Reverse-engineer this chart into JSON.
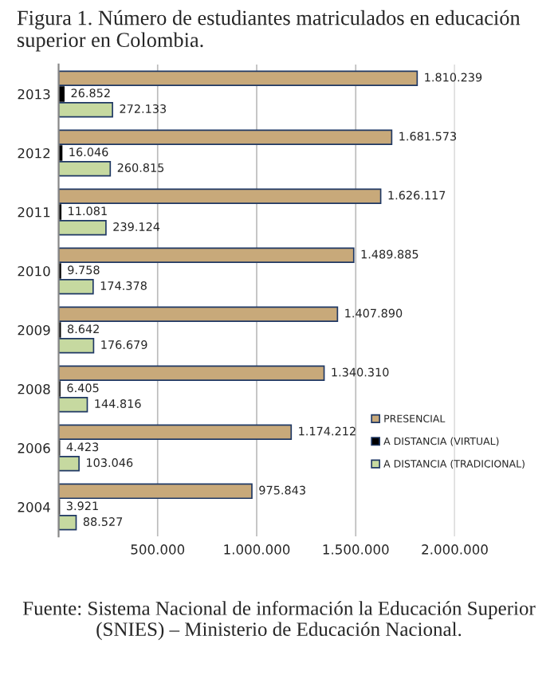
{
  "chart_data": {
    "type": "bar",
    "orientation": "horizontal",
    "title": "Figura 1. Número de estudiantes matriculados en educación superior en Colombia.",
    "categories": [
      "2013",
      "2012",
      "2011",
      "2010",
      "2009",
      "2008",
      "2006",
      "2004"
    ],
    "series": [
      {
        "name": "PRESENCIAL",
        "color": "#c8a97a",
        "values": [
          1810239,
          1681573,
          1626117,
          1489885,
          1407890,
          1340310,
          1174212,
          975843
        ],
        "value_labels": [
          "1.810.239",
          "1.681.573",
          "1.626.117",
          "1.489.885",
          "1.407.890",
          "1.340.310",
          "1.174.212",
          "975.843"
        ]
      },
      {
        "name": "A DISTANCIA (VIRTUAL)",
        "color": "#000000",
        "values": [
          26852,
          16046,
          11081,
          9758,
          8642,
          6405,
          4423,
          3921
        ],
        "value_labels": [
          "26.852",
          "16.046",
          "11.081",
          "9.758",
          "8.642",
          "6.405",
          "4.423",
          "3.921"
        ]
      },
      {
        "name": "A DISTANCIA (TRADICIONAL)",
        "color": "#c6d9a0",
        "values": [
          272133,
          260815,
          239124,
          174378,
          176679,
          144816,
          103046,
          88527
        ],
        "value_labels": [
          "272.133",
          "260.815",
          "239.124",
          "174.378",
          "176.679",
          "144.816",
          "103.046",
          "88.527"
        ]
      }
    ],
    "xlim": [
      0,
      2000000
    ],
    "xticks": [
      {
        "value": 500000,
        "label": "500.000"
      },
      {
        "value": 1000000,
        "label": "1.000.000"
      },
      {
        "value": 1500000,
        "label": "1.500.000"
      },
      {
        "value": 2000000,
        "label": "2.000.000"
      }
    ],
    "grid": "x",
    "legend": "right",
    "annotations": [
      "Fuente: Sistema Nacional de información la Educación Superior (SNIES) – Ministerio de Educación Nacional."
    ]
  }
}
